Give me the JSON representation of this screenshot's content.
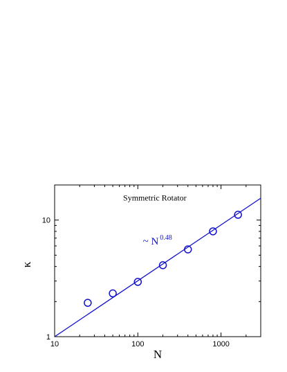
{
  "chart_data": {
    "type": "scatter",
    "title": "",
    "xlabel": "N",
    "ylabel": "κ",
    "xscale": "log",
    "yscale": "log",
    "xlim": [
      10,
      3000
    ],
    "ylim": [
      1,
      20
    ],
    "grid": false,
    "x_ticks": [
      {
        "value": 10,
        "label": "10"
      },
      {
        "value": 100,
        "label": "100"
      },
      {
        "value": 1000,
        "label": "1000"
      }
    ],
    "y_ticks": [
      {
        "value": 1,
        "label": "1"
      },
      {
        "value": 10,
        "label": "10"
      }
    ],
    "series": [
      {
        "type": "scatter",
        "marker": "open-circle",
        "color": "#1010cc",
        "x": [
          25,
          50,
          100,
          200,
          400,
          800,
          1600
        ],
        "y": [
          1.95,
          2.35,
          2.95,
          4.1,
          5.6,
          8.0,
          11.1
        ]
      },
      {
        "type": "line",
        "color": "#1010cc",
        "x": [
          10,
          3000
        ],
        "y": [
          1.0,
          15.4
        ]
      }
    ],
    "annotations": [
      {
        "text": "Symmetric Rotator",
        "x": 160,
        "y": 15.5
      },
      {
        "prefix": "~ N",
        "exponent": "0.48",
        "x": 115,
        "y": 6.6
      }
    ]
  }
}
